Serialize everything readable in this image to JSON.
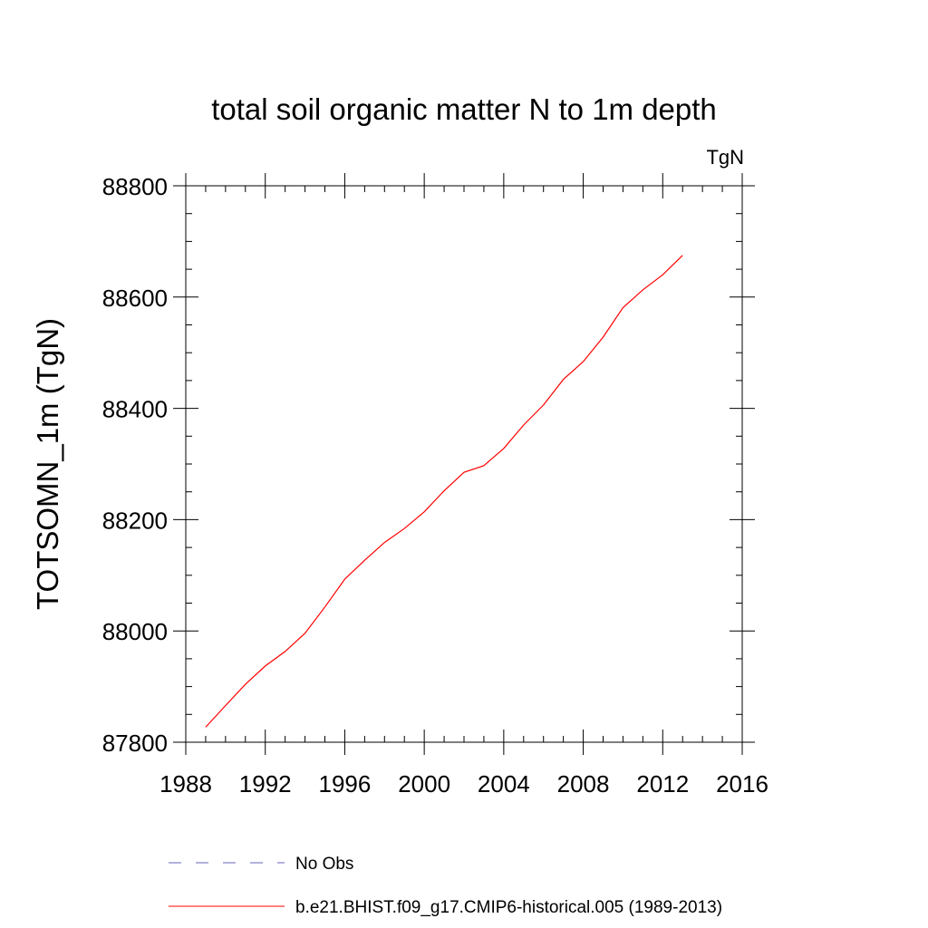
{
  "chart_data": {
    "type": "line",
    "title": "total soil organic matter N to 1m depth",
    "units": "TgN",
    "ylabel": "TOTSOMN_1m  (TgN)",
    "xlabel": "",
    "xlim": [
      1988,
      2016
    ],
    "ylim": [
      87800,
      88800
    ],
    "xticks": [
      1988,
      1992,
      1996,
      2000,
      2004,
      2008,
      2012,
      2016
    ],
    "yticks": [
      87800,
      88000,
      88200,
      88400,
      88600,
      88800
    ],
    "grid": false,
    "legend_position": "bottom",
    "series": [
      {
        "name": "No Obs",
        "color": "#6666bb",
        "style": "dashed",
        "x": [],
        "y": []
      },
      {
        "name": "b.e21.BHIST.f09_g17.CMIP6-historical.005 (1989-2013)",
        "color": "#ff0000",
        "style": "solid",
        "x": [
          1989,
          1990,
          1991,
          1992,
          1993,
          1994,
          1995,
          1996,
          1997,
          1998,
          1999,
          2000,
          2001,
          2002,
          2003,
          2004,
          2005,
          2006,
          2007,
          2008,
          2009,
          2010,
          2011,
          2012,
          2013
        ],
        "y": [
          87827,
          87866,
          87904,
          87937,
          87963,
          87996,
          88043,
          88093,
          88127,
          88159,
          88184,
          88214,
          88252,
          88285,
          88297,
          88328,
          88370,
          88406,
          88452,
          88484,
          88528,
          88581,
          88613,
          88640,
          88675
        ]
      }
    ]
  }
}
